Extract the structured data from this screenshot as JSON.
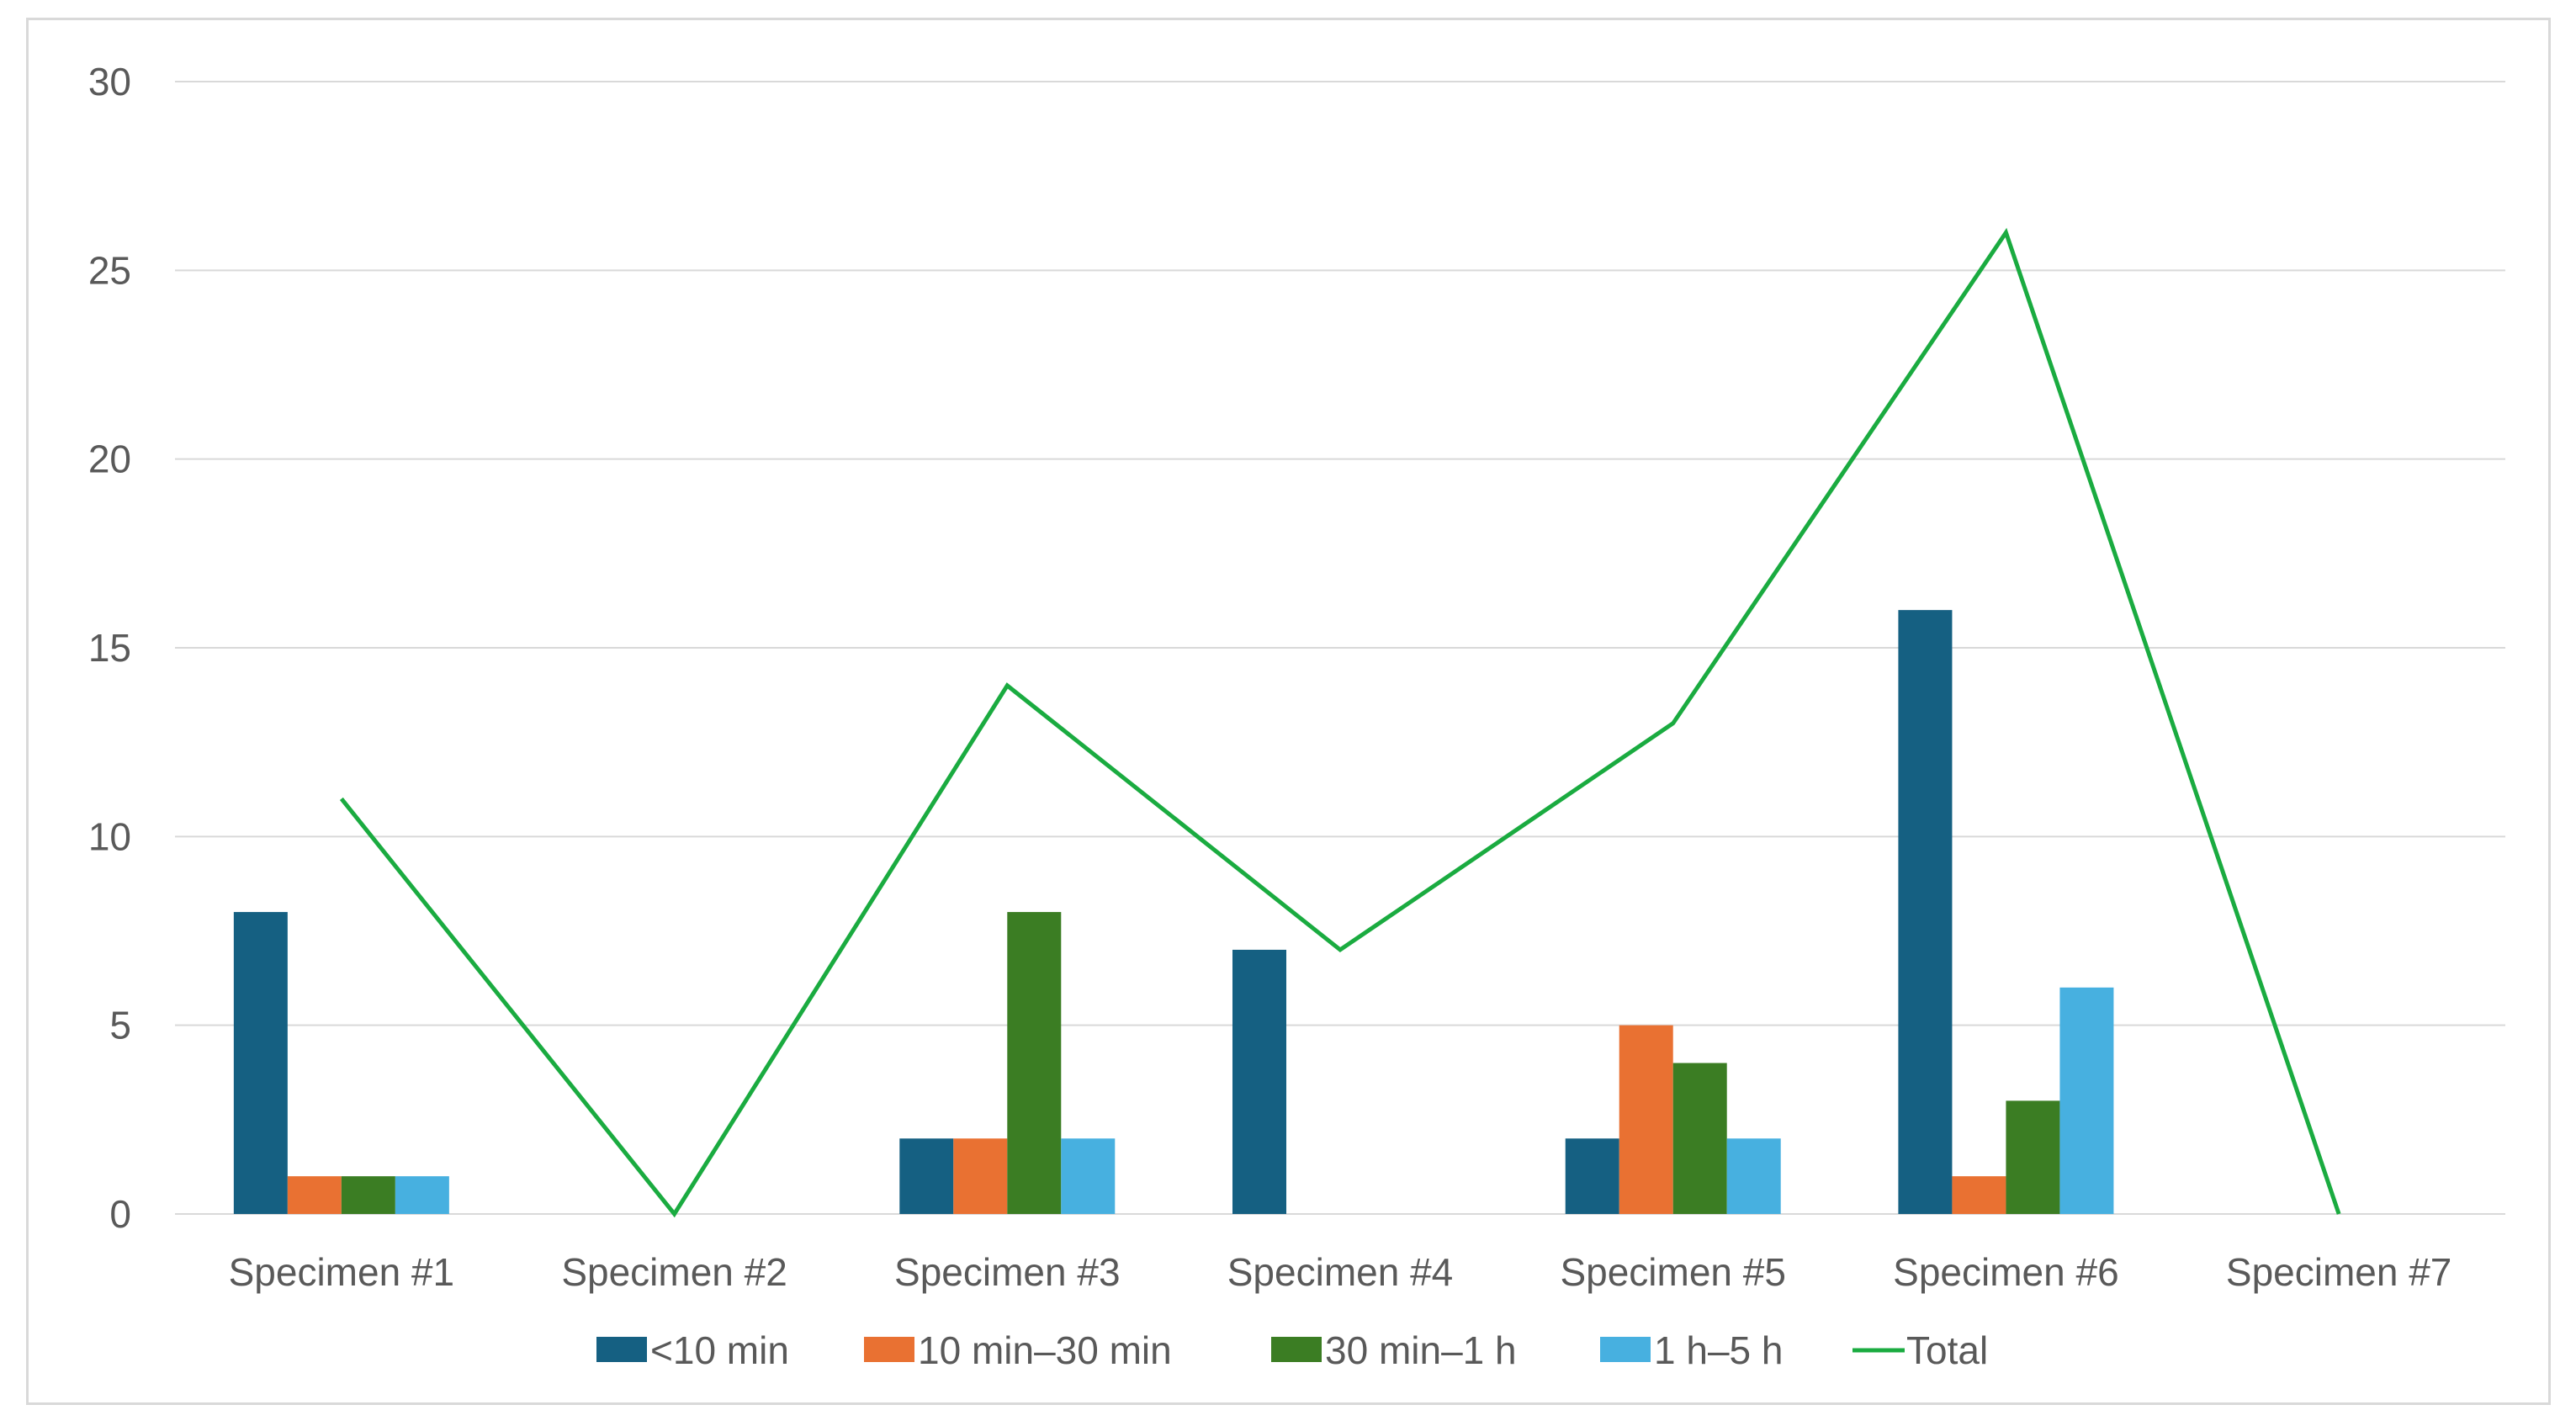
{
  "chart_data": {
    "type": "bar",
    "categories": [
      "Specimen #1",
      "Specimen #2",
      "Specimen #3",
      "Specimen #4",
      "Specimen #5",
      "Specimen #6",
      "Specimen #7"
    ],
    "series": [
      {
        "name": "<10 min",
        "kind": "bar",
        "color": "#156082",
        "values": [
          8,
          0,
          2,
          7,
          2,
          16,
          0
        ]
      },
      {
        "name": "10 min–30 min",
        "kind": "bar",
        "color": "#e97132",
        "values": [
          1,
          0,
          2,
          0,
          5,
          1,
          0
        ]
      },
      {
        "name": "30 min–1 h",
        "kind": "bar",
        "color": "#3b7d23",
        "values": [
          1,
          0,
          8,
          0,
          4,
          3,
          0
        ]
      },
      {
        "name": "1 h–5 h",
        "kind": "bar",
        "color": "#47b0e0",
        "values": [
          1,
          0,
          2,
          0,
          2,
          6,
          0
        ]
      },
      {
        "name": "Total",
        "kind": "line",
        "color": "#1aab40",
        "values": [
          11,
          0,
          14,
          7,
          13,
          26,
          0
        ]
      }
    ],
    "ylim": [
      0,
      30
    ],
    "yticks": [
      "0",
      "5",
      "10",
      "15",
      "20",
      "25",
      "30"
    ],
    "title": "",
    "xlabel": "",
    "ylabel": "",
    "grid": true,
    "gridColor": "#d9d9d9",
    "legend": "bottom"
  }
}
